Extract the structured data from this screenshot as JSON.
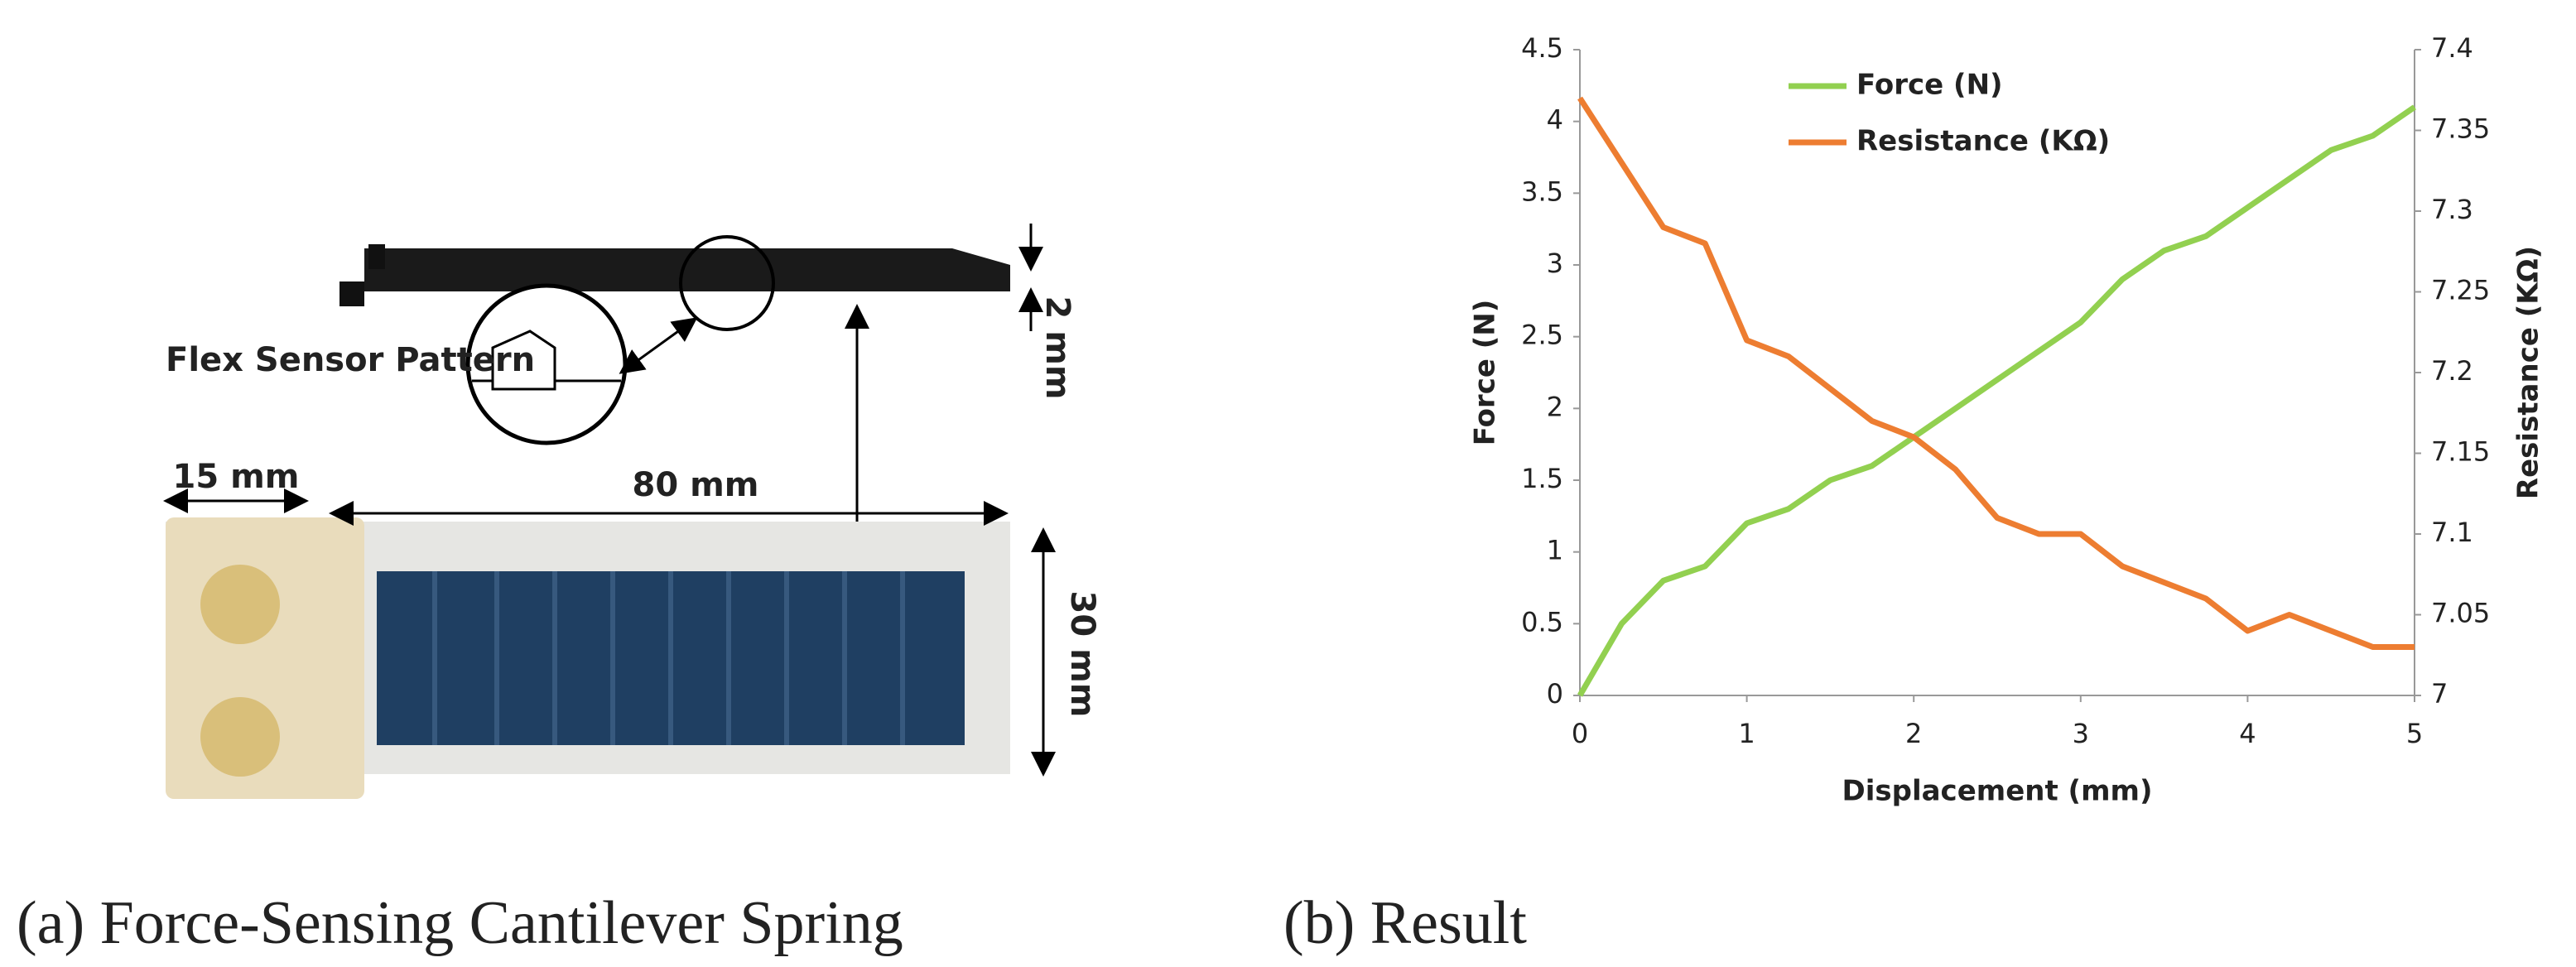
{
  "panel_a": {
    "labels": {
      "flex": "Flex Sensor Pattern",
      "width_15": "15 mm",
      "length_80": "80 mm",
      "thickness": "2 mm",
      "height_30": "30 mm"
    },
    "caption": "(a) Force-Sensing Cantilever Spring"
  },
  "panel_b": {
    "caption": "(b) Result"
  },
  "chart_data": {
    "type": "line",
    "x_label": "Displacement (mm)",
    "y_label": "Force (N)",
    "y2_label": "Resistance  (KΩ)",
    "x": [
      0,
      0.25,
      0.5,
      0.75,
      1,
      1.25,
      1.5,
      1.75,
      2,
      2.25,
      2.5,
      2.75,
      3,
      3.25,
      3.5,
      3.75,
      4,
      4.25,
      4.5,
      4.75,
      5
    ],
    "series": [
      {
        "name": "Force (N)",
        "color": "#92d050",
        "values": [
          0,
          0.5,
          0.8,
          0.9,
          1.2,
          1.3,
          1.5,
          1.6,
          1.8,
          2.0,
          2.2,
          2.4,
          2.6,
          2.9,
          3.1,
          3.2,
          3.4,
          3.6,
          3.8,
          3.9,
          4.1
        ]
      },
      {
        "name": "Resistance  (KΩ)",
        "color": "#ed7d31",
        "axis": "y2",
        "values": [
          7.37,
          7.33,
          7.29,
          7.28,
          7.22,
          7.21,
          7.19,
          7.17,
          7.16,
          7.14,
          7.11,
          7.1,
          7.1,
          7.08,
          7.07,
          7.06,
          7.04,
          7.05,
          7.04,
          7.03,
          7.03
        ]
      }
    ],
    "xlim": [
      0,
      5
    ],
    "xticks": [
      0,
      1,
      2,
      3,
      4,
      5
    ],
    "ylim": [
      0,
      4.5
    ],
    "yticks": [
      0,
      0.5,
      1,
      1.5,
      2,
      2.5,
      3,
      3.5,
      4,
      4.5
    ],
    "y2lim": [
      7,
      7.4
    ],
    "y2ticks": [
      7,
      7.05,
      7.1,
      7.15,
      7.2,
      7.25,
      7.3,
      7.35,
      7.4
    ],
    "grid": false,
    "legend": "top-left"
  }
}
